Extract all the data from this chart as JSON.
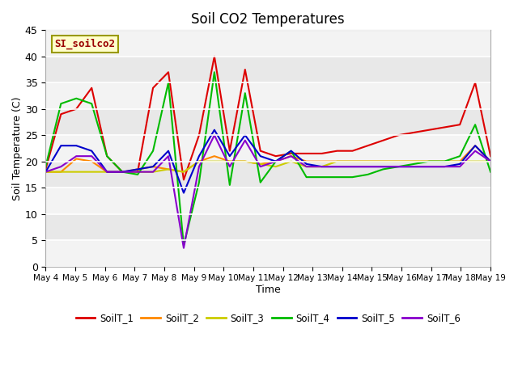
{
  "title": "Soil CO2 Temperatures",
  "xlabel": "Time",
  "ylabel": "Soil Temperature (C)",
  "ylim": [
    0,
    45
  ],
  "annotation": "SI_soilco2",
  "plot_bg": "#e8e8e8",
  "series_colors": {
    "SoilT_1": "#dd0000",
    "SoilT_2": "#ff8800",
    "SoilT_3": "#cccc00",
    "SoilT_4": "#00bb00",
    "SoilT_5": "#0000cc",
    "SoilT_6": "#8800cc"
  },
  "tick_labels": [
    "May 4",
    "May 5",
    "May 6",
    "May 7",
    "May 8",
    "May 9",
    "May 10",
    "May 11",
    "May 12",
    "May 13",
    "May 14",
    "May 15",
    "May 16",
    "May 17",
    "May 18",
    "May 19"
  ],
  "SoilT_1": [
    18.5,
    29,
    30,
    34,
    21,
    18,
    18,
    34,
    37,
    16.5,
    25,
    40,
    22,
    37.5,
    22,
    21,
    21.5,
    21.5,
    21.5,
    22,
    22,
    23,
    24,
    25,
    25.5,
    26,
    26.5,
    27,
    35,
    21
  ],
  "SoilT_2": [
    18,
    18,
    20.5,
    20,
    18,
    18,
    18.5,
    19,
    18.5,
    18,
    20,
    21,
    20,
    20,
    19.5,
    20,
    21,
    20,
    20,
    20,
    20,
    20,
    20,
    20,
    20,
    20,
    20,
    20,
    23,
    20
  ],
  "SoilT_3": [
    18,
    18,
    18,
    18,
    18,
    18,
    18,
    18,
    18.5,
    18,
    20,
    20,
    20,
    20,
    19.5,
    19,
    20,
    19,
    19,
    20,
    20,
    20,
    20,
    20,
    20,
    20,
    20,
    20,
    20,
    20
  ],
  "SoilT_4": [
    19,
    31,
    32,
    31,
    21,
    18,
    17.5,
    22,
    35,
    4,
    16,
    37,
    15.5,
    33,
    16,
    20,
    22,
    17,
    17,
    17,
    17,
    17.5,
    18.5,
    19,
    19.5,
    20,
    20,
    21,
    27,
    18
  ],
  "SoilT_5": [
    18,
    23,
    23,
    22,
    18,
    18,
    18.5,
    19,
    22,
    14,
    21,
    26,
    21,
    25,
    21,
    20,
    22,
    19.5,
    19,
    19,
    19,
    19,
    19,
    19,
    19,
    19,
    19,
    19.5,
    23,
    20
  ],
  "SoilT_6": [
    18,
    19,
    21,
    21,
    18,
    18,
    18,
    18,
    21,
    3.5,
    19,
    25,
    19,
    24,
    19,
    20,
    21,
    19,
    19,
    19,
    19,
    19,
    19,
    19,
    19,
    19,
    19,
    19,
    22,
    20
  ]
}
